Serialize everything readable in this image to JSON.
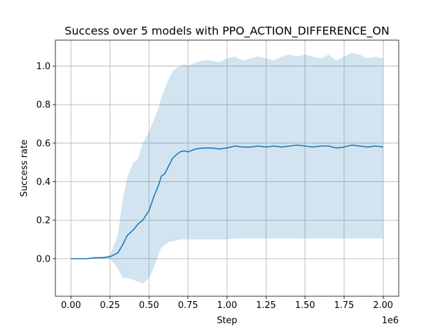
{
  "chart_data": {
    "type": "line",
    "title": "Success over 5 models with PPO_ACTION_DIFFERENCE_ON",
    "xlabel": "Step",
    "ylabel": "Success rate",
    "x_offset_label": "1e6",
    "xlim": [
      -100000,
      2100000
    ],
    "ylim": [
      -0.195,
      1.135
    ],
    "x_ticks": [
      0,
      250000,
      500000,
      750000,
      1000000,
      1250000,
      1500000,
      1750000,
      2000000
    ],
    "x_tick_labels": [
      "0.00",
      "0.25",
      "0.50",
      "0.75",
      "1.00",
      "1.25",
      "1.50",
      "1.75",
      "2.00"
    ],
    "y_ticks": [
      0.0,
      0.2,
      0.4,
      0.6,
      0.8,
      1.0
    ],
    "y_tick_labels": [
      "0.0",
      "0.2",
      "0.4",
      "0.6",
      "0.8",
      "1.0"
    ],
    "grid": true,
    "colors": {
      "line": "#1f77b4",
      "band": "#1f77b4",
      "band_opacity": 0.2,
      "grid": "#b0b0b0"
    },
    "series": [
      {
        "x": [
          0,
          50000,
          100000,
          150000,
          200000,
          250000,
          300000,
          330000,
          360000,
          400000,
          430000,
          460000,
          500000,
          530000,
          560000,
          580000,
          600000,
          625000,
          650000,
          675000,
          700000,
          725000,
          750000,
          800000,
          850000,
          900000,
          950000,
          1000000,
          1050000,
          1100000,
          1150000,
          1200000,
          1250000,
          1300000,
          1350000,
          1400000,
          1450000,
          1500000,
          1550000,
          1600000,
          1650000,
          1700000,
          1750000,
          1800000,
          1850000,
          1900000,
          1950000,
          2000000
        ],
        "mean": [
          0.0,
          0.0,
          0.0,
          0.005,
          0.005,
          0.01,
          0.03,
          0.07,
          0.12,
          0.15,
          0.18,
          0.2,
          0.25,
          0.32,
          0.38,
          0.43,
          0.44,
          0.48,
          0.52,
          0.54,
          0.555,
          0.56,
          0.555,
          0.57,
          0.575,
          0.575,
          0.57,
          0.575,
          0.585,
          0.58,
          0.58,
          0.585,
          0.58,
          0.585,
          0.58,
          0.585,
          0.59,
          0.585,
          0.58,
          0.585,
          0.585,
          0.575,
          0.58,
          0.59,
          0.585,
          0.58,
          0.585,
          0.58
        ],
        "upper": [
          0.0,
          0.0,
          0.0,
          0.005,
          0.01,
          0.02,
          0.12,
          0.3,
          0.42,
          0.5,
          0.52,
          0.6,
          0.66,
          0.72,
          0.78,
          0.84,
          0.88,
          0.93,
          0.97,
          0.99,
          1.0,
          1.01,
          1.0,
          1.02,
          1.03,
          1.03,
          1.02,
          1.04,
          1.05,
          1.03,
          1.04,
          1.05,
          1.04,
          1.03,
          1.05,
          1.06,
          1.05,
          1.06,
          1.05,
          1.04,
          1.06,
          1.03,
          1.05,
          1.07,
          1.06,
          1.04,
          1.05,
          1.04
        ],
        "lower": [
          0.0,
          0.0,
          0.0,
          0.0,
          0.0,
          0.0,
          -0.05,
          -0.1,
          -0.1,
          -0.11,
          -0.12,
          -0.13,
          -0.1,
          -0.05,
          0.02,
          0.06,
          0.07,
          0.085,
          0.09,
          0.095,
          0.1,
          0.1,
          0.1,
          0.1,
          0.1,
          0.1,
          0.1,
          0.1,
          0.105,
          0.105,
          0.105,
          0.105,
          0.105,
          0.105,
          0.105,
          0.105,
          0.105,
          0.105,
          0.105,
          0.105,
          0.105,
          0.105,
          0.105,
          0.105,
          0.105,
          0.105,
          0.105,
          0.105
        ]
      }
    ]
  }
}
